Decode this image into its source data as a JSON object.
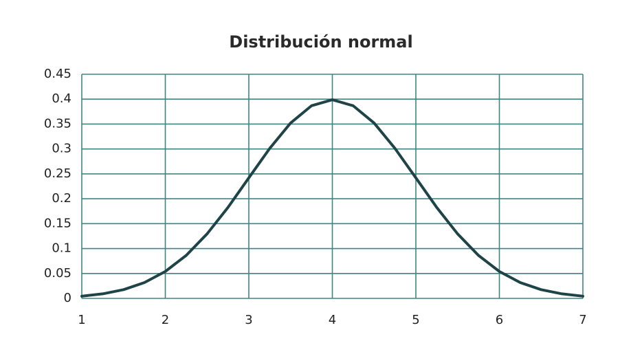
{
  "chart_data": {
    "type": "line",
    "title": "Distribución normal",
    "x": [
      1,
      1.25,
      1.5,
      1.75,
      2,
      2.25,
      2.5,
      2.75,
      3,
      3.25,
      3.5,
      3.75,
      4,
      4.25,
      4.5,
      4.75,
      5,
      5.25,
      5.5,
      5.75,
      6,
      6.25,
      6.5,
      6.75,
      7
    ],
    "series": [
      {
        "name": "Distribución normal",
        "color": "#1f4448",
        "values": [
          0.0044,
          0.0091,
          0.0175,
          0.0317,
          0.054,
          0.0863,
          0.1295,
          0.1826,
          0.242,
          0.3011,
          0.3521,
          0.3867,
          0.3989,
          0.3867,
          0.3521,
          0.3011,
          0.242,
          0.1826,
          0.1295,
          0.0863,
          0.054,
          0.0317,
          0.0175,
          0.0091,
          0.0044
        ]
      }
    ],
    "xlim": [
      1,
      7
    ],
    "xticks": [
      1,
      2,
      3,
      4,
      5,
      6,
      7
    ],
    "ylim": [
      0,
      0.45
    ],
    "yticks": [
      0,
      0.05,
      0.1,
      0.15,
      0.2,
      0.25,
      0.3,
      0.35,
      0.4,
      0.45
    ],
    "grid": true
  }
}
